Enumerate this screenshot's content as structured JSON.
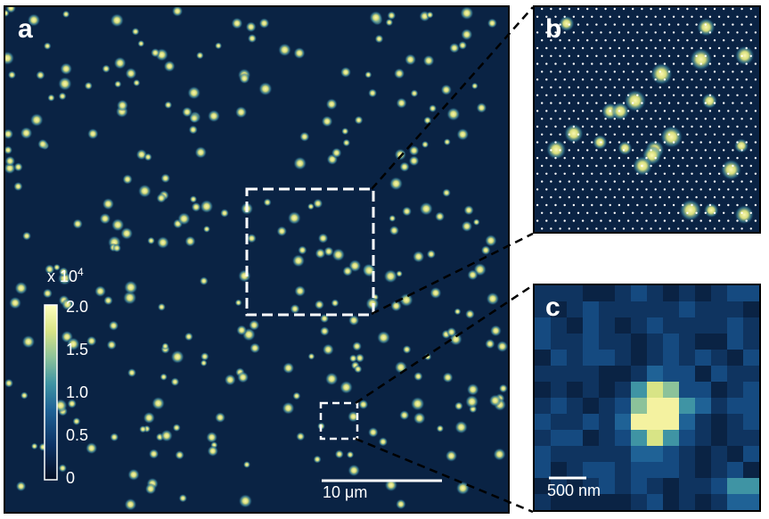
{
  "panels": {
    "a": {
      "letter": "a"
    },
    "b": {
      "letter": "b"
    },
    "c": {
      "letter": "c"
    }
  },
  "colorbar": {
    "multiplier_label": "x 10",
    "multiplier_exponent": "4",
    "ticks": [
      "2.0",
      "1.5",
      "1.0",
      "0.5",
      "0"
    ],
    "colormap": [
      "#ffffbe",
      "#e3e78a",
      "#71b6a0",
      "#2d7aa4",
      "#134a80",
      "#0a2344",
      "#050f24"
    ]
  },
  "scalebars": {
    "main": "10 μm",
    "zoom_c": "500 nm"
  },
  "colors": {
    "background": "#0a2344",
    "spot": "#e8e47a",
    "overlay": "#ffffff"
  }
}
